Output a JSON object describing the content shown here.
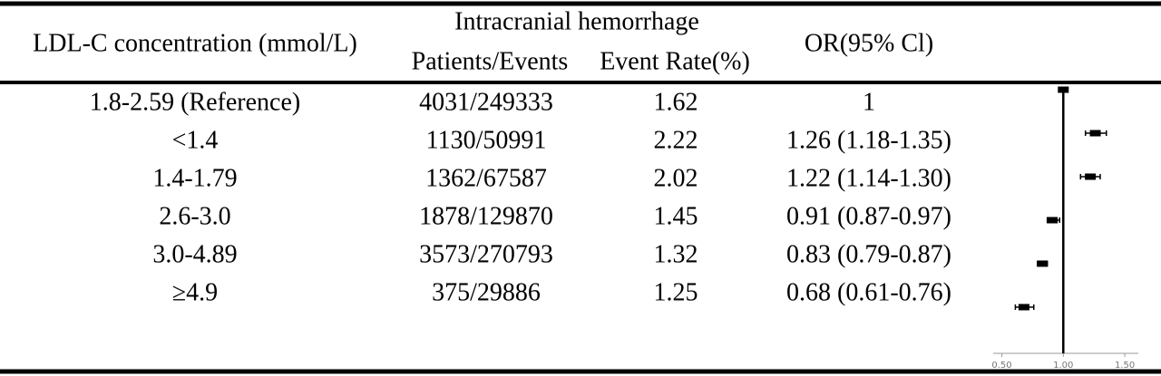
{
  "chart_data": {
    "type": "forest",
    "headers": {
      "group": "LDL-C concentration (mmol/L)",
      "outcome": "Intracranial hemorrhage",
      "patients_events": "Patients/Events",
      "event_rate": "Event Rate(%)",
      "or": "OR(95% Cl)"
    },
    "categories": [
      "1.8-2.59 (Reference)",
      "<1.4",
      "1.4-1.79",
      "2.6-3.0",
      "3.0-4.89",
      "≥4.9"
    ],
    "patients_events": [
      "4031/249333",
      "1130/50991",
      "1362/67587",
      "1878/129870",
      "3573/270793",
      "375/29886"
    ],
    "event_rate": [
      1.62,
      2.22,
      2.02,
      1.45,
      1.32,
      1.25
    ],
    "values": [
      1,
      1.26,
      1.22,
      0.91,
      0.83,
      0.68
    ],
    "lower": [
      null,
      1.18,
      1.14,
      0.87,
      0.79,
      0.61
    ],
    "upper": [
      null,
      1.35,
      1.3,
      0.97,
      0.87,
      0.76
    ],
    "value_labels": [
      "1",
      "1.26 (1.18-1.35)",
      "1.22 (1.14-1.30)",
      "0.91 (0.87-0.97)",
      "0.83 (0.79-0.87)",
      "0.68 (0.61-0.76)"
    ],
    "color": "#000000",
    "xlim": [
      0.43,
      1.61
    ],
    "xticks": [
      {
        "value": 0.5,
        "label": "0.50"
      },
      {
        "value": 1,
        "label": "1.00"
      },
      {
        "value": 1.5,
        "label": "1.50"
      }
    ]
  }
}
